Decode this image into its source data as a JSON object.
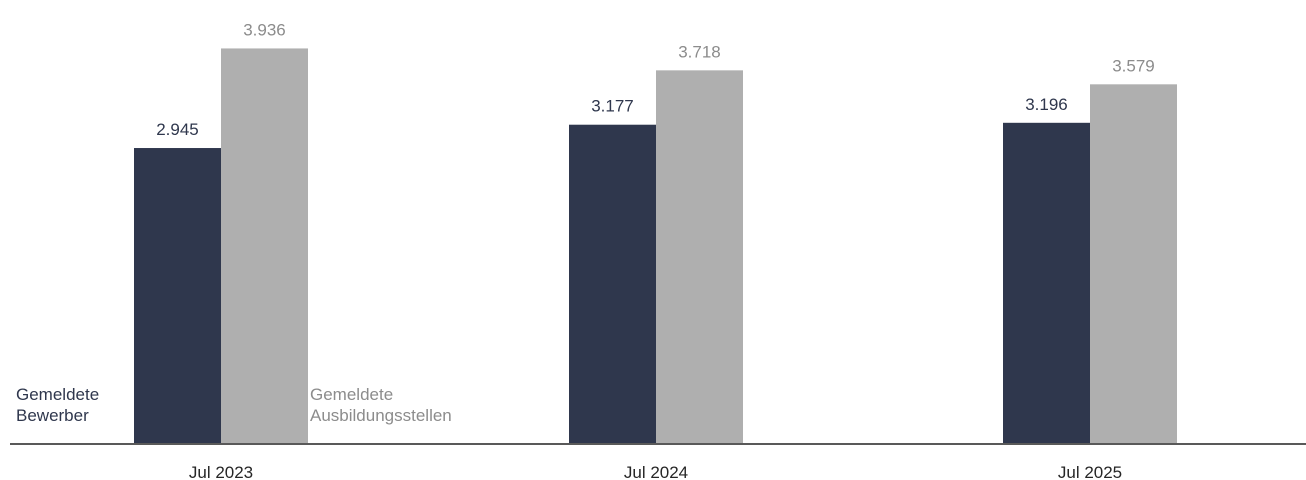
{
  "chart_data": {
    "type": "bar",
    "categories": [
      "Jul 2023",
      "Jul 2024",
      "Jul 2025"
    ],
    "series": [
      {
        "name": "Gemeldete Bewerber",
        "label_lines": [
          "Gemeldete",
          "Bewerber"
        ],
        "values": [
          2945,
          3177,
          3196
        ],
        "value_labels": [
          "2.945",
          "3.177",
          "3.196"
        ],
        "color": "#2f374d",
        "label_color": "#2f374d"
      },
      {
        "name": "Gemeldete Ausbildungsstellen",
        "label_lines": [
          "Gemeldete",
          "Ausbildungsstellen"
        ],
        "values": [
          3936,
          3718,
          3579
        ],
        "value_labels": [
          "3.936",
          "3.718",
          "3.579"
        ],
        "color": "#afafaf",
        "label_color": "#8c8c8c"
      }
    ],
    "ylim": [
      0,
      4000
    ],
    "grid": false,
    "y_axis_visible": false,
    "axis_color": "#595959",
    "tick_label_color": "#262626"
  }
}
